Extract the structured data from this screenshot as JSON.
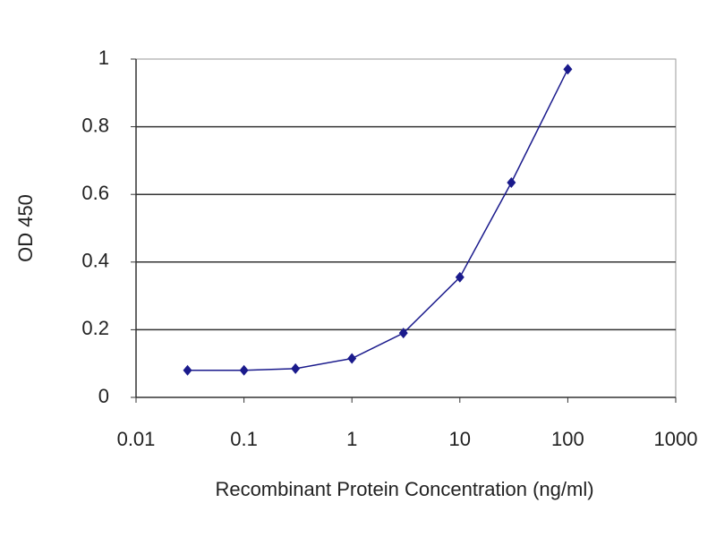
{
  "chart_data": {
    "type": "line",
    "x_label": "Recombinant Protein Concentration (ng/ml)",
    "y_label": "OD 450",
    "x": [
      0.03,
      0.1,
      0.3,
      1,
      3,
      10,
      30,
      100
    ],
    "series": [
      {
        "color": "#1a1a8c",
        "values": [
          0.08,
          0.08,
          0.085,
          0.115,
          0.19,
          0.355,
          0.635,
          0.97
        ]
      }
    ],
    "xlog": true,
    "xlim": [
      0.01,
      1000
    ],
    "xticks": [
      0.01,
      0.1,
      1,
      10,
      100,
      1000
    ],
    "ylim": [
      0,
      1
    ],
    "yticks": [
      0,
      0.2,
      0.4,
      0.6,
      0.8,
      1
    ],
    "grid": true
  }
}
